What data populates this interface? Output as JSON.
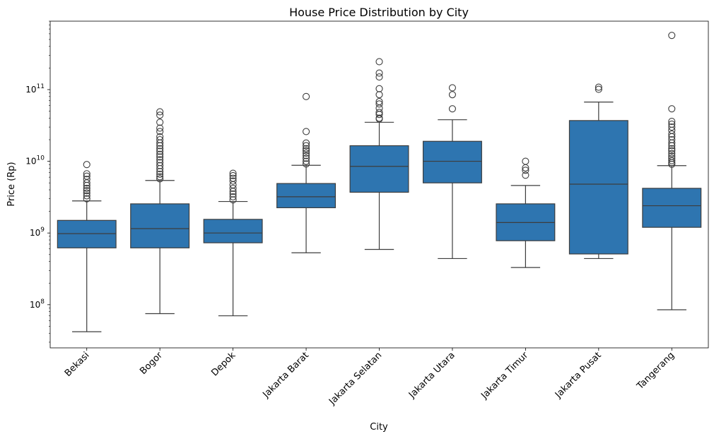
{
  "chart_data": {
    "type": "box",
    "title": "House Price Distribution by City",
    "xlabel": "City",
    "ylabel": "Price (Rp)",
    "yscale": "log",
    "ylim": [
      25000000,
      900000000000
    ],
    "yticks": [
      {
        "value": 100000000,
        "base": "10",
        "exp": "8"
      },
      {
        "value": 1000000000,
        "base": "10",
        "exp": "9"
      },
      {
        "value": 10000000000,
        "base": "10",
        "exp": "10"
      },
      {
        "value": 100000000000,
        "base": "10",
        "exp": "11"
      }
    ],
    "grid": false,
    "color": "#2e75b0",
    "categories": [
      "Bekasi",
      "Bogor",
      "Depok",
      "Jakarta Barat",
      "Jakarta Selatan",
      "Jakarta Utara",
      "Jakarta Timur",
      "Jakarta Pusat",
      "Tangerang"
    ],
    "boxes": [
      {
        "whislo": 42000000,
        "q1": 620000000,
        "med": 980000000,
        "q3": 1500000000,
        "whishi": 2800000000,
        "fliers": [
          3000000000,
          3300000000,
          3600000000,
          3900000000,
          4200000000,
          4600000000,
          5000000000,
          5600000000,
          6200000000,
          6700000000,
          9000000000
        ]
      },
      {
        "whislo": 75000000,
        "q1": 620000000,
        "med": 1150000000,
        "q3": 2550000000,
        "whishi": 5400000000,
        "fliers": [
          5700000000,
          6100000000,
          6600000000,
          7200000000,
          7900000000,
          8700000000,
          9600000000,
          10500000000,
          11500000000,
          12500000000,
          13800000000,
          15000000000,
          16500000000,
          18000000000,
          20000000000,
          22000000000,
          26000000000,
          29000000000,
          35000000000,
          44000000000,
          49000000000
        ]
      },
      {
        "whislo": 70000000,
        "q1": 730000000,
        "med": 1000000000,
        "q3": 1550000000,
        "whishi": 2750000000,
        "fliers": [
          2900000000,
          3200000000,
          3500000000,
          3800000000,
          4200000000,
          4700000000,
          5300000000,
          5800000000,
          6300000000,
          6800000000
        ]
      },
      {
        "whislo": 530000000,
        "q1": 2250000000,
        "med": 3200000000,
        "q3": 4900000000,
        "whishi": 8800000000,
        "fliers": [
          9200000000,
          10000000000,
          11000000000,
          12000000000,
          13000000000,
          14000000000,
          15000000000,
          16500000000,
          18000000000,
          26000000000,
          80000000000
        ]
      },
      {
        "whislo": 590000000,
        "q1": 3700000000,
        "med": 8500000000,
        "q3": 16500000000,
        "whishi": 35000000000,
        "fliers": [
          39000000000,
          40000000000,
          45000000000,
          48000000000,
          55000000000,
          63000000000,
          68000000000,
          85000000000,
          103000000000,
          150000000000,
          170000000000,
          245000000000
        ]
      },
      {
        "whislo": 440000000,
        "q1": 5000000000,
        "med": 10000000000,
        "q3": 19000000000,
        "whishi": 38000000000,
        "fliers": [
          54000000000,
          85000000000,
          106000000000
        ]
      },
      {
        "whislo": 330000000,
        "q1": 780000000,
        "med": 1400000000,
        "q3": 2550000000,
        "whishi": 4600000000,
        "fliers": [
          6400000000,
          7500000000,
          8100000000,
          10000000000
        ]
      },
      {
        "whislo": 440000000,
        "q1": 510000000,
        "med": 4800000000,
        "q3": 37000000000,
        "whishi": 67000000000,
        "fliers": [
          101000000000,
          108000000000
        ]
      },
      {
        "whislo": 85000000,
        "q1": 1200000000,
        "med": 2400000000,
        "q3": 4200000000,
        "whishi": 8700000000,
        "fliers": [
          9100000000,
          9600000000,
          10200000000,
          11000000000,
          11800000000,
          12800000000,
          14000000000,
          15000000000,
          16500000000,
          18000000000,
          20000000000,
          22000000000,
          24000000000,
          27000000000,
          30000000000,
          33000000000,
          36000000000,
          54000000000,
          570000000000
        ]
      }
    ]
  }
}
